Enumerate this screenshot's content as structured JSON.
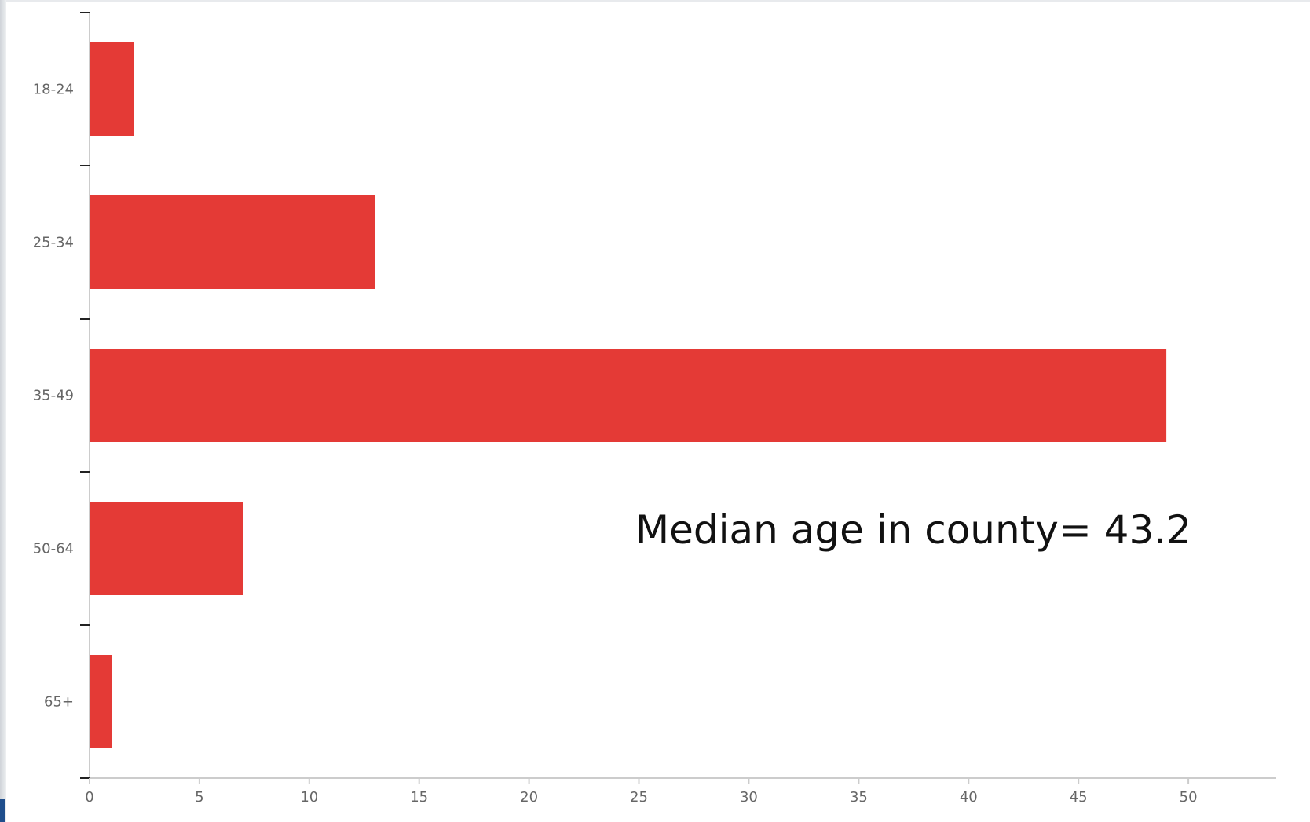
{
  "chart_data": {
    "type": "bar",
    "orientation": "horizontal",
    "categories": [
      "18-24",
      "25-34",
      "35-49",
      "50-64",
      "65+"
    ],
    "values": [
      2,
      13,
      49,
      7,
      1
    ],
    "xlim": [
      0,
      54
    ],
    "xticks": [
      "0",
      "5",
      "10",
      "15",
      "20",
      "25",
      "30",
      "35",
      "40",
      "45",
      "50"
    ],
    "annotation": "Median age in county= 43.2",
    "title": "",
    "xlabel": "",
    "ylabel": "",
    "grid": false,
    "colors": {
      "bar": "#e43a36",
      "axis": "#cccccc",
      "tick": "#222222",
      "tick_label": "#666666"
    }
  }
}
